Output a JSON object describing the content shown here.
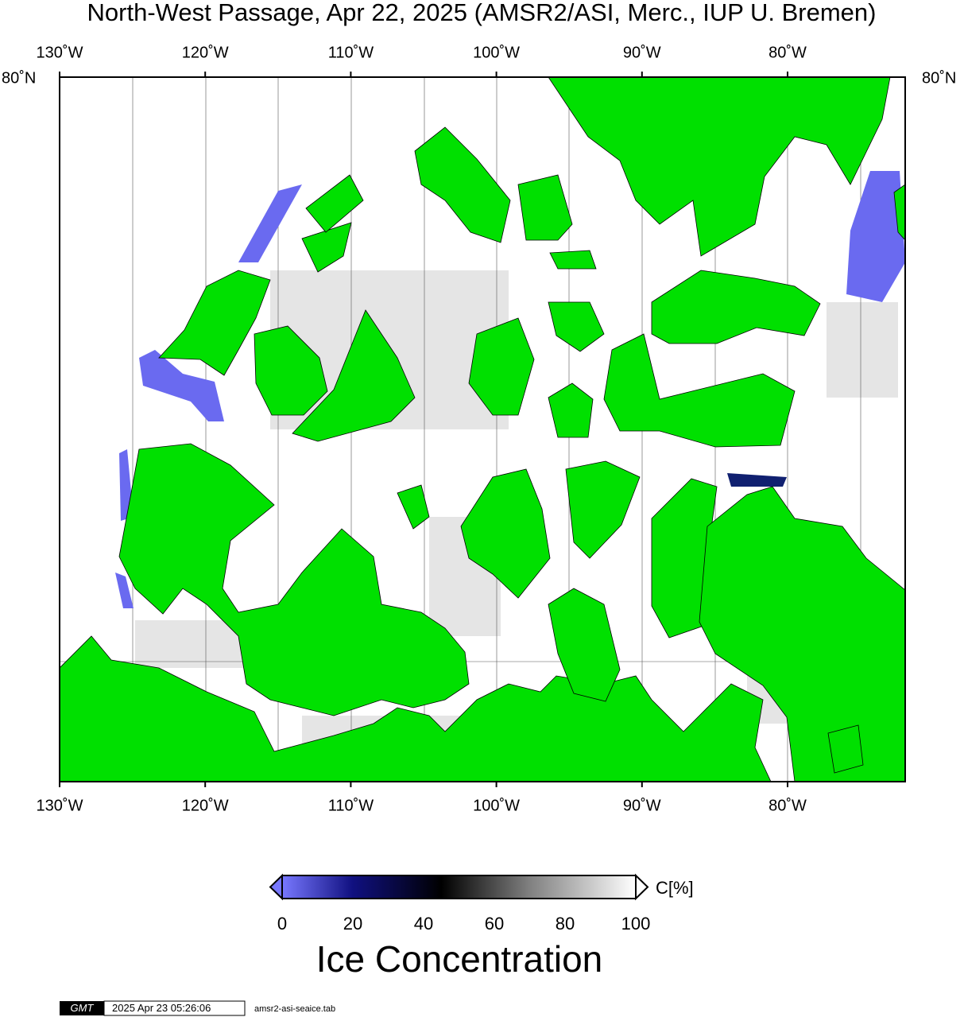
{
  "title": "North-West Passage, Apr 22, 2025 (AMSR2/ASI, Merc., IUP U. Bremen)",
  "map": {
    "lon_labels": [
      "130˚W",
      "120˚W",
      "110˚W",
      "100˚W",
      "90˚W",
      "80˚W"
    ],
    "lat_label": "80˚N"
  },
  "colorbar": {
    "ticks": [
      "0",
      "20",
      "40",
      "60",
      "80",
      "100"
    ],
    "unit": "C[%]",
    "label": "Ice Concentration"
  },
  "footer": {
    "logo": "GMT",
    "timestamp": "2025 Apr 23 05:26:06",
    "file": "amsr2-asi-seaice.tab"
  }
}
